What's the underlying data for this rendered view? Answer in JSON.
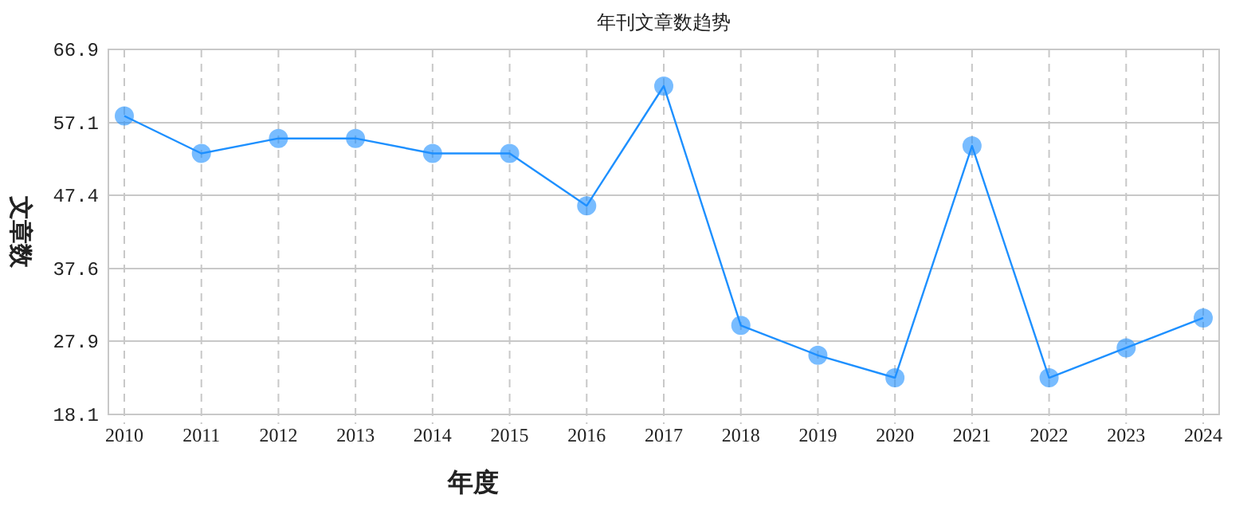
{
  "chart_data": {
    "type": "line",
    "title": "年刊文章数趋势",
    "xlabel": "年度",
    "ylabel": "文章数",
    "categories": [
      "2010",
      "2011",
      "2012",
      "2013",
      "2014",
      "2015",
      "2016",
      "2017",
      "2018",
      "2019",
      "2020",
      "2021",
      "2022",
      "2023",
      "2024"
    ],
    "series": [
      {
        "color": "#1e90ff",
        "values": [
          58,
          53,
          55,
          55,
          53,
          53,
          46,
          62,
          30,
          26,
          23,
          54,
          23,
          27,
          31
        ]
      }
    ],
    "ylim": [
      18.1,
      66.9
    ],
    "yticks": [
      18.1,
      27.9,
      37.6,
      47.4,
      57.1,
      66.9
    ],
    "grid": true,
    "marker": "circle",
    "line_style": "solid"
  }
}
